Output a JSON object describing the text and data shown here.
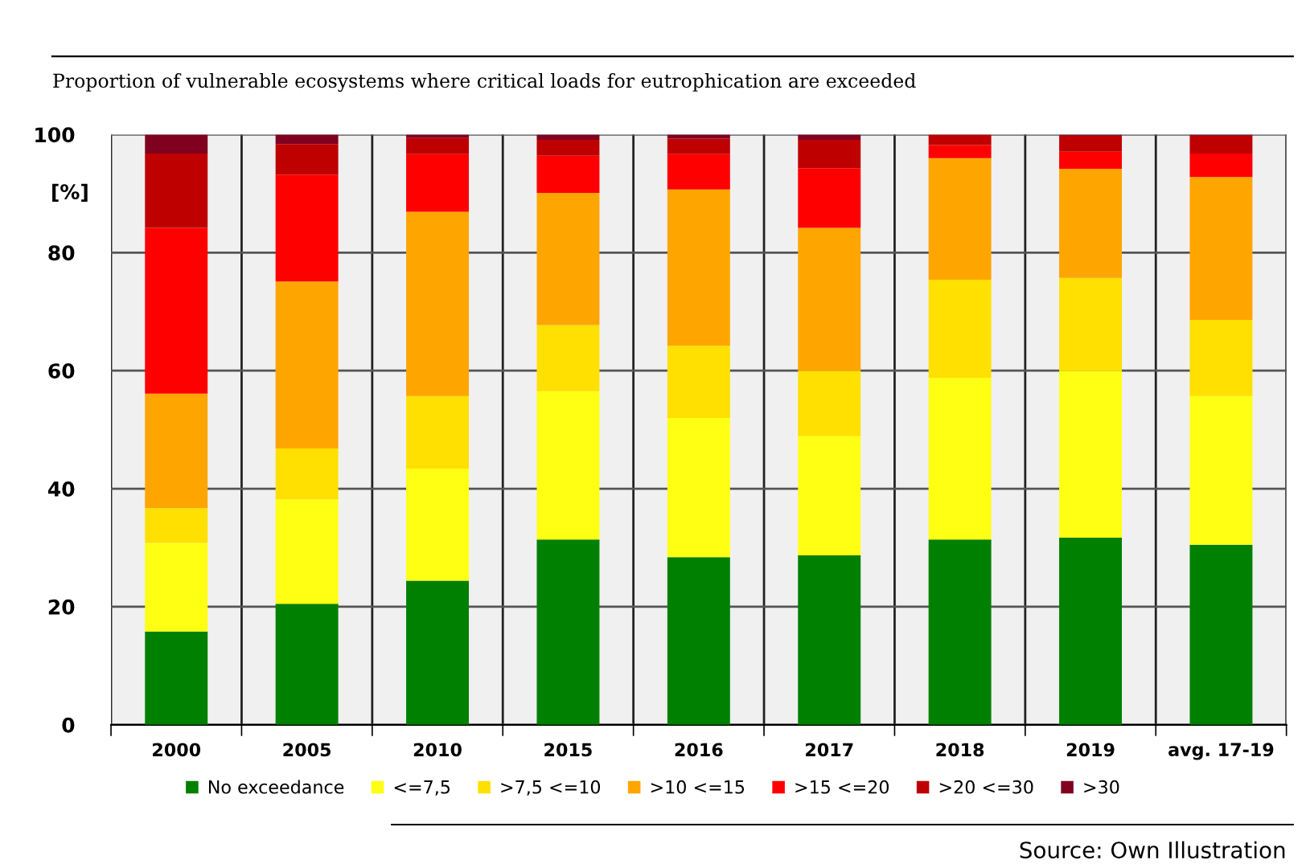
{
  "chart_data": {
    "type": "bar",
    "stacked": true,
    "title": "Proportion of vulnerable ecosystems where critical loads for eutrophication are exceeded",
    "ylabel": "[%]",
    "categories": [
      "2000",
      "2005",
      "2010",
      "2015",
      "2016",
      "2017",
      "2018",
      "2019",
      "avg. 17-19"
    ],
    "series": [
      {
        "name": "No exceedance",
        "color": "#008000",
        "values": [
          15.8,
          20.5,
          24.4,
          31.4,
          28.4,
          28.7,
          31.4,
          31.7,
          30.5
        ]
      },
      {
        "name": "<=7,5",
        "color": "#ffff14",
        "values": [
          15.0,
          17.7,
          19.0,
          25.1,
          23.6,
          20.2,
          27.4,
          28.3,
          25.2
        ]
      },
      {
        "name": ">7,5 <=10",
        "color": "#ffe000",
        "values": [
          5.9,
          8.6,
          12.3,
          11.2,
          12.2,
          11.1,
          16.6,
          15.7,
          12.9
        ]
      },
      {
        "name": ">10 <=15",
        "color": "#ffa500",
        "values": [
          19.4,
          28.3,
          31.2,
          22.4,
          26.5,
          24.2,
          20.6,
          18.5,
          24.2
        ]
      },
      {
        "name": ">15 <=20",
        "color": "#ff0000",
        "values": [
          28.1,
          18.1,
          9.8,
          6.3,
          6.0,
          10.1,
          2.2,
          2.9,
          4.0
        ]
      },
      {
        "name": ">20 <=30",
        "color": "#bf0000",
        "values": [
          12.6,
          5.2,
          2.7,
          2.7,
          2.6,
          4.8,
          1.8,
          2.7,
          3.0
        ]
      },
      {
        "name": ">30",
        "color": "#800020",
        "values": [
          3.2,
          1.6,
          0.6,
          0.9,
          0.7,
          0.9,
          0.0,
          0.2,
          0.2
        ]
      }
    ],
    "ylim": [
      0,
      100
    ],
    "yticks": [
      0,
      20,
      40,
      60,
      80,
      100
    ],
    "grid": true,
    "legend": "bottom",
    "annotations": [
      "Source: Own Illustration"
    ]
  }
}
